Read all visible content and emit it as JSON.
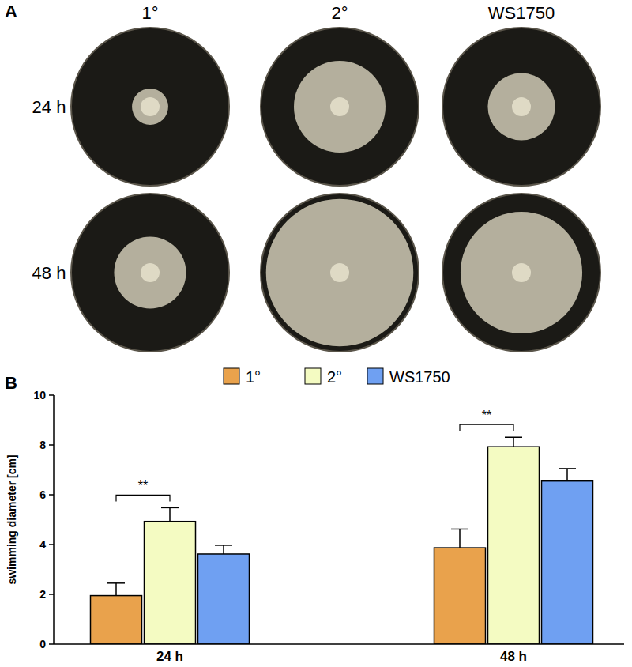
{
  "panel_labels": [
    "A",
    "B"
  ],
  "photo_panel": {
    "columns": [
      "1°",
      "2°",
      "WS1750"
    ],
    "rows": [
      "24 h",
      "48 h"
    ]
  },
  "chart_data": {
    "type": "bar",
    "y_label": "swimming diameter [cm]",
    "categories": [
      "24 h",
      "48 h"
    ],
    "series": [
      {
        "name": "1°",
        "color": "#e9a24c",
        "values": [
          1.95,
          3.87
        ],
        "errors": [
          0.5,
          0.75
        ]
      },
      {
        "name": "2°",
        "color": "#f4fbc2",
        "values": [
          4.93,
          7.93
        ],
        "errors": [
          0.55,
          0.38
        ]
      },
      {
        "name": "WS1750",
        "color": "#6fa0f2",
        "values": [
          3.62,
          6.55
        ],
        "errors": [
          0.35,
          0.5
        ]
      }
    ],
    "ylim": [
      0,
      10
    ],
    "yticks": [
      0,
      2,
      4,
      6,
      8,
      10
    ],
    "legend": "top",
    "grid": false,
    "annotations": [
      {
        "text": "**",
        "category": "24 h",
        "between": [
          "1°",
          "2°"
        ]
      },
      {
        "text": "**",
        "category": "48 h",
        "between": [
          "1°",
          "2°"
        ]
      }
    ]
  }
}
